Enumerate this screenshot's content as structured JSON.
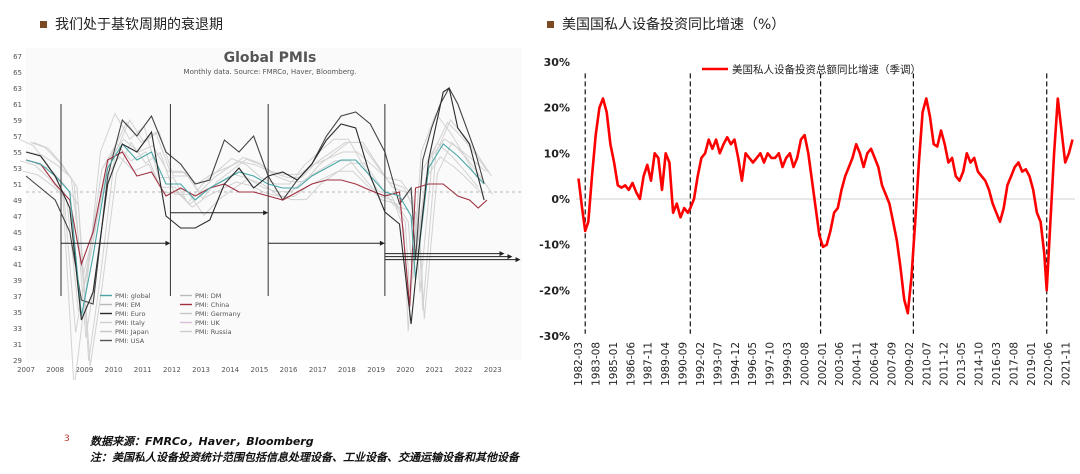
{
  "left_title": "我们处于基钦周期的衰退期",
  "right_title": "美国国私人设备投资同比增速（%）",
  "page_number": "3",
  "footer": {
    "source": "数据来源：FMRCo，Haver，Bloomberg",
    "note": "注：美国私人设备投资统计范围包括信息处理设备、工业设备、交通运输设备和其他设备"
  },
  "chart_data": [
    {
      "type": "line",
      "title": "Global PMIs",
      "subtitle": "Monthly data. Source: FMRCo, Haver, Bloomberg.",
      "x_ticks": [
        "2007",
        "2008",
        "2009",
        "2010",
        "2011",
        "2012",
        "2013",
        "2014",
        "2015",
        "2016",
        "2017",
        "2018",
        "2019",
        "2020",
        "2021",
        "2022",
        "2023"
      ],
      "y_ticks": [
        29,
        31,
        33,
        35,
        37,
        39,
        41,
        43,
        45,
        47,
        49,
        51,
        53,
        55,
        57,
        59,
        61,
        63,
        65,
        67
      ],
      "ylim": [
        29,
        68
      ],
      "xlim": [
        2007,
        2024
      ],
      "reference_y": 50,
      "legend": [
        "PMI: global",
        "PMI: EM",
        "PMI: Euro",
        "PMI: Italy",
        "PMI: Japan",
        "PMI: USA",
        "PMI: DM",
        "PMI: China",
        "PMI: Germany",
        "PMI: UK",
        "PMI: Russia"
      ],
      "legend_colors": [
        "#4aa6a6",
        "#b9b9b9",
        "#2a2a2a",
        "#cfcfcf",
        "#c4c4c4",
        "#555555",
        "#bbbbbb",
        "#a03040",
        "#c7c7c7",
        "#d8c0d8",
        "#cccccc"
      ],
      "cycle_markers_x": [
        2008.2,
        2011.95,
        2015.3,
        2019.3
      ],
      "cycle_arrows": [
        {
          "from": 2008.2,
          "to": 2011.95,
          "y": 43.6
        },
        {
          "from": 2011.95,
          "to": 2015.3,
          "y": 47.4
        },
        {
          "from": 2015.3,
          "to": 2019.3,
          "y": 43.6
        },
        {
          "from": 2019.3,
          "to": 2023.4,
          "y": 42.3
        }
      ],
      "series": [
        {
          "name": "PMI: USA",
          "color": "#444444",
          "x": [
            2007,
            2007.5,
            2008,
            2008.5,
            2008.9,
            2009.3,
            2009.8,
            2010.3,
            2010.8,
            2011.3,
            2011.8,
            2012.3,
            2012.8,
            2013.3,
            2013.8,
            2014.3,
            2014.8,
            2015.3,
            2015.8,
            2016.3,
            2016.8,
            2017.3,
            2017.8,
            2018.3,
            2018.8,
            2019.3,
            2019.8,
            2020.2,
            2020.35,
            2020.6,
            2020.9,
            2021.2,
            2021.5,
            2021.8,
            2022.1,
            2022.4,
            2022.7
          ],
          "y": [
            52,
            50.5,
            49,
            45,
            36.5,
            36,
            52,
            59,
            57,
            59.5,
            55,
            53.5,
            51,
            51.5,
            56.5,
            55,
            57,
            52,
            49,
            51.5,
            53.5,
            57,
            59.5,
            60,
            58.5,
            55,
            48.5,
            50.5,
            41.5,
            54,
            58,
            61,
            63,
            61,
            58,
            55,
            51
          ]
        },
        {
          "name": "PMI: China",
          "color": "#a03040",
          "x": [
            2007,
            2007.5,
            2008,
            2008.5,
            2008.9,
            2009.3,
            2009.8,
            2010.3,
            2010.8,
            2011.3,
            2011.8,
            2012.3,
            2012.8,
            2013.3,
            2013.8,
            2014.3,
            2014.8,
            2015.3,
            2015.8,
            2016.3,
            2016.8,
            2017.3,
            2017.8,
            2018.3,
            2018.8,
            2019.3,
            2019.8,
            2020.15,
            2020.35,
            2020.8,
            2021.3,
            2021.8,
            2022.2,
            2022.5,
            2022.8
          ],
          "y": [
            54,
            53.5,
            51,
            49,
            41,
            45,
            54,
            55,
            52,
            52.5,
            49.5,
            50.5,
            49.5,
            50.5,
            51,
            50,
            50,
            49.5,
            49,
            50,
            51,
            51.5,
            51.5,
            51,
            50.2,
            49.5,
            50,
            35.7,
            50.5,
            51,
            51,
            49.5,
            49,
            48,
            49
          ]
        },
        {
          "name": "PMI: global",
          "color": "#4aa6a6",
          "x": [
            2007,
            2007.5,
            2008,
            2008.5,
            2008.9,
            2009.3,
            2009.8,
            2010.3,
            2010.8,
            2011.3,
            2011.8,
            2012.3,
            2012.8,
            2013.3,
            2013.8,
            2014.3,
            2014.8,
            2015.3,
            2015.8,
            2016.3,
            2016.8,
            2017.3,
            2017.8,
            2018.3,
            2018.8,
            2019.3,
            2019.8,
            2020.2,
            2020.35,
            2020.8,
            2021.3,
            2021.8,
            2022.2,
            2022.7
          ],
          "y": [
            54,
            53.5,
            52,
            50,
            34.5,
            42,
            53,
            56,
            54,
            55,
            51,
            51,
            49,
            50.5,
            51.5,
            52.5,
            52,
            51,
            50.5,
            50.5,
            52,
            53,
            54,
            54,
            52,
            50,
            49.5,
            47,
            39,
            53,
            56,
            54.5,
            53,
            51
          ]
        },
        {
          "name": "PMI: Euro",
          "color": "#2a2a2a",
          "x": [
            2007,
            2007.5,
            2008,
            2008.5,
            2008.9,
            2009.3,
            2009.8,
            2010.3,
            2010.8,
            2011.3,
            2011.8,
            2012.3,
            2012.8,
            2013.3,
            2013.8,
            2014.3,
            2014.8,
            2015.3,
            2015.8,
            2016.3,
            2016.8,
            2017.3,
            2017.8,
            2018.3,
            2018.8,
            2019.3,
            2019.8,
            2020.2,
            2020.35,
            2020.8,
            2021.3,
            2021.5,
            2021.8,
            2022.2,
            2022.7
          ],
          "y": [
            55,
            54.5,
            52,
            48,
            34,
            37.5,
            51,
            56,
            55,
            57.5,
            47,
            45.5,
            45.5,
            46.5,
            51,
            53,
            50.5,
            52,
            52.5,
            51.5,
            53.5,
            56.5,
            58.5,
            58,
            52,
            47.5,
            46,
            33.5,
            39,
            54,
            62.5,
            63,
            58,
            56,
            49
          ]
        }
      ],
      "ghost_series_note": "PMI: EM, PMI: Italy, PMI: Japan, PMI: DM, PMI: Germany, PMI: UK, PMI: Russia drawn as light grey lines"
    },
    {
      "type": "line",
      "title": "美国国私人设备投资同比增速（%）",
      "legend": [
        "美国私人设备投资总额同比增速（季调）"
      ],
      "ylim": [
        -30,
        30
      ],
      "y_ticks": [
        "30%",
        "20%",
        "10%",
        "0%",
        "-10%",
        "-20%",
        "-30%"
      ],
      "x_ticks": [
        "1982-03",
        "1983-08",
        "1985-01",
        "1986-06",
        "1987-11",
        "1989-04",
        "1990-09",
        "1992-02",
        "1993-07",
        "1994-12",
        "1996-05",
        "1997-10",
        "1999-03",
        "2000-08",
        "2002-01",
        "2003-06",
        "2004-11",
        "2006-04",
        "2007-09",
        "2009-02",
        "2010-07",
        "2011-12",
        "2013-05",
        "2014-10",
        "2016-03",
        "2017-08",
        "2019-01",
        "2020-06",
        "2021-11"
      ],
      "recession_markers": [
        1982.75,
        1991.3,
        2001.9,
        2009.45,
        2020.3
      ],
      "series": [
        {
          "name": "美国私人设备投资总额同比增速（季调）",
          "color": "#ff0000",
          "x": [
            1982.2,
            1982.5,
            1982.75,
            1983.0,
            1983.3,
            1983.6,
            1983.9,
            1984.2,
            1984.5,
            1984.8,
            1985.1,
            1985.4,
            1985.7,
            1986.0,
            1986.3,
            1986.6,
            1986.9,
            1987.2,
            1987.5,
            1987.8,
            1988.1,
            1988.4,
            1988.7,
            1989.0,
            1989.3,
            1989.6,
            1989.9,
            1990.2,
            1990.5,
            1990.8,
            1991.1,
            1991.3,
            1991.6,
            1991.9,
            1992.2,
            1992.5,
            1992.8,
            1993.1,
            1993.4,
            1993.7,
            1994.0,
            1994.3,
            1994.6,
            1994.9,
            1995.2,
            1995.5,
            1995.8,
            1996.1,
            1996.4,
            1996.7,
            1997.0,
            1997.3,
            1997.6,
            1997.9,
            1998.2,
            1998.5,
            1998.8,
            1999.1,
            1999.4,
            1999.7,
            2000.0,
            2000.3,
            2000.6,
            2000.9,
            2001.2,
            2001.5,
            2001.8,
            2002.1,
            2002.4,
            2002.7,
            2003.0,
            2003.3,
            2003.6,
            2003.9,
            2004.2,
            2004.5,
            2004.8,
            2005.1,
            2005.4,
            2005.7,
            2006.0,
            2006.3,
            2006.6,
            2006.9,
            2007.2,
            2007.5,
            2007.8,
            2008.1,
            2008.4,
            2008.7,
            2009.0,
            2009.3,
            2009.6,
            2009.9,
            2010.2,
            2010.5,
            2010.8,
            2011.1,
            2011.4,
            2011.7,
            2012.0,
            2012.3,
            2012.6,
            2012.9,
            2013.2,
            2013.5,
            2013.8,
            2014.1,
            2014.4,
            2014.7,
            2015.0,
            2015.3,
            2015.6,
            2015.9,
            2016.2,
            2016.5,
            2016.8,
            2017.1,
            2017.4,
            2017.7,
            2018.0,
            2018.3,
            2018.6,
            2018.9,
            2019.2,
            2019.5,
            2019.8,
            2020.1,
            2020.3,
            2020.6,
            2020.9,
            2021.2,
            2021.5,
            2021.8,
            2022.1,
            2022.4
          ],
          "y": [
            4.5,
            -2,
            -7,
            -5,
            5,
            14,
            20,
            22,
            19,
            12,
            8,
            3,
            2.5,
            3,
            2,
            3.5,
            1.5,
            0,
            5,
            7.5,
            4,
            10,
            9,
            2,
            10,
            8,
            -3,
            -1,
            -4,
            -2,
            -3,
            -2,
            0,
            5,
            9,
            10,
            13,
            11,
            13,
            10,
            12,
            13.5,
            12,
            13,
            9,
            4,
            10,
            9,
            8,
            9,
            10,
            8,
            10,
            9,
            9,
            10,
            7,
            9,
            10,
            7,
            9,
            13,
            14,
            10,
            4,
            -2,
            -8,
            -10.5,
            -10,
            -7,
            -3,
            -2,
            2,
            5,
            7,
            9,
            12,
            10,
            7,
            10,
            11,
            9,
            7,
            3,
            1,
            -1,
            -5,
            -9,
            -15,
            -22,
            -25,
            -17,
            -5,
            8,
            19,
            22,
            18,
            12,
            11.5,
            15,
            12,
            8,
            9,
            5,
            4,
            6,
            10,
            8,
            9,
            6,
            5,
            4,
            2,
            -1,
            -3,
            -5,
            -2,
            3,
            5,
            7,
            8,
            6,
            6.5,
            5,
            2,
            -3,
            -5,
            -12,
            -20,
            -5,
            10,
            22,
            15,
            8,
            10,
            13
          ]
        }
      ]
    }
  ]
}
